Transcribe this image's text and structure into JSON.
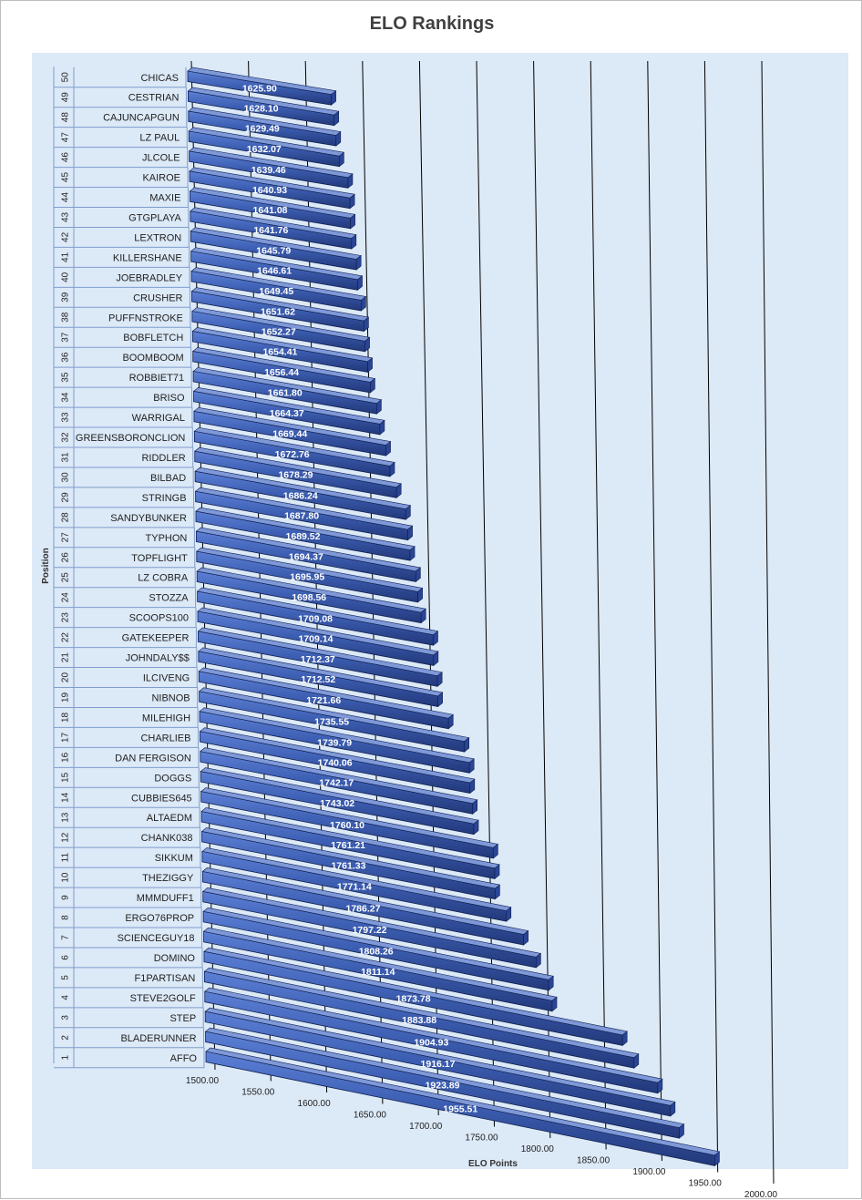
{
  "chart_data": {
    "type": "bar",
    "orientation": "horizontal",
    "style": "3d",
    "title": "ELO Rankings",
    "xlabel": "ELO Points",
    "ylabel": "Position",
    "xlim": [
      1500,
      2000
    ],
    "x_ticks": [
      "1500.00",
      "1550.00",
      "1600.00",
      "1650.00",
      "1700.00",
      "1750.00",
      "1800.00",
      "1850.00",
      "1900.00",
      "1950.00",
      "2000.00"
    ],
    "grid": "vertical",
    "bar_color": "#3d5fb3",
    "rows": [
      {
        "position": "50",
        "name": "CHICAS",
        "value": 1625.9,
        "label": "1625.90"
      },
      {
        "position": "49",
        "name": "CESTRIAN",
        "value": 1628.1,
        "label": "1628.10"
      },
      {
        "position": "48",
        "name": "CAJUNCAPGUN",
        "value": 1629.49,
        "label": "1629.49"
      },
      {
        "position": "47",
        "name": "LZ PAUL",
        "value": 1632.07,
        "label": "1632.07"
      },
      {
        "position": "46",
        "name": "JLCOLE",
        "value": 1639.46,
        "label": "1639.46"
      },
      {
        "position": "45",
        "name": "KAIROE",
        "value": 1640.93,
        "label": "1640.93"
      },
      {
        "position": "44",
        "name": "MAXIE",
        "value": 1641.08,
        "label": "1641.08"
      },
      {
        "position": "43",
        "name": "GTGPLAYA",
        "value": 1641.76,
        "label": "1641.76"
      },
      {
        "position": "42",
        "name": "LEXTRON",
        "value": 1645.79,
        "label": "1645.79"
      },
      {
        "position": "41",
        "name": "KILLERSHANE",
        "value": 1646.61,
        "label": "1646.61"
      },
      {
        "position": "40",
        "name": "JOEBRADLEY",
        "value": 1649.45,
        "label": "1649.45"
      },
      {
        "position": "39",
        "name": "CRUSHER",
        "value": 1651.62,
        "label": "1651.62"
      },
      {
        "position": "38",
        "name": "PUFFNSTROKE",
        "value": 1652.27,
        "label": "1652.27"
      },
      {
        "position": "37",
        "name": "BOBFLETCH",
        "value": 1654.41,
        "label": "1654.41"
      },
      {
        "position": "36",
        "name": "BOOMBOOM",
        "value": 1656.44,
        "label": "1656.44"
      },
      {
        "position": "35",
        "name": "ROBBIET71",
        "value": 1661.8,
        "label": "1661.80"
      },
      {
        "position": "34",
        "name": "BRISO",
        "value": 1664.37,
        "label": "1664.37"
      },
      {
        "position": "33",
        "name": "WARRIGAL",
        "value": 1669.44,
        "label": "1669.44"
      },
      {
        "position": "32",
        "name": "GREENSBORONCLION",
        "value": 1672.76,
        "label": "1672.76"
      },
      {
        "position": "31",
        "name": "RIDDLER",
        "value": 1678.29,
        "label": "1678.29"
      },
      {
        "position": "30",
        "name": "BILBAD",
        "value": 1686.24,
        "label": "1686.24"
      },
      {
        "position": "29",
        "name": "STRINGB",
        "value": 1687.8,
        "label": "1687.80"
      },
      {
        "position": "28",
        "name": "SANDYBUNKER",
        "value": 1689.52,
        "label": "1689.52"
      },
      {
        "position": "27",
        "name": "TYPHON",
        "value": 1694.37,
        "label": "1694.37"
      },
      {
        "position": "26",
        "name": "TOPFLIGHT",
        "value": 1695.95,
        "label": "1695.95"
      },
      {
        "position": "25",
        "name": "LZ COBRA",
        "value": 1698.56,
        "label": "1698.56"
      },
      {
        "position": "24",
        "name": "STOZZA",
        "value": 1709.08,
        "label": "1709.08"
      },
      {
        "position": "23",
        "name": "SCOOPS100",
        "value": 1709.14,
        "label": "1709.14"
      },
      {
        "position": "22",
        "name": "GATEKEEPER",
        "value": 1712.37,
        "label": "1712.37"
      },
      {
        "position": "21",
        "name": "JOHNDALY$$",
        "value": 1712.52,
        "label": "1712.52"
      },
      {
        "position": "20",
        "name": "ILCIVENG",
        "value": 1721.66,
        "label": "1721.66"
      },
      {
        "position": "19",
        "name": "NIBNOB",
        "value": 1735.55,
        "label": "1735.55"
      },
      {
        "position": "18",
        "name": "MILEHIGH",
        "value": 1739.79,
        "label": "1739.79"
      },
      {
        "position": "17",
        "name": "CHARLIEB",
        "value": 1740.06,
        "label": "1740.06"
      },
      {
        "position": "16",
        "name": "DAN FERGISON",
        "value": 1742.17,
        "label": "1742.17"
      },
      {
        "position": "15",
        "name": "DOGGS",
        "value": 1743.02,
        "label": "1743.02"
      },
      {
        "position": "14",
        "name": "CUBBIES645",
        "value": 1760.1,
        "label": "1760.10"
      },
      {
        "position": "13",
        "name": "ALTAEDM",
        "value": 1761.21,
        "label": "1761.21"
      },
      {
        "position": "12",
        "name": "CHANK038",
        "value": 1761.33,
        "label": "1761.33"
      },
      {
        "position": "11",
        "name": "SIKKUM",
        "value": 1771.14,
        "label": "1771.14"
      },
      {
        "position": "10",
        "name": "THEZIGGY",
        "value": 1786.27,
        "label": "1786.27"
      },
      {
        "position": "9",
        "name": "MMMDUFF1",
        "value": 1797.22,
        "label": "1797.22"
      },
      {
        "position": "8",
        "name": "ERGO76PROP",
        "value": 1808.26,
        "label": "1808.26"
      },
      {
        "position": "7",
        "name": "SCIENCEGUY18",
        "value": 1811.14,
        "label": "1811.14"
      },
      {
        "position": "6",
        "name": "DOMINO",
        "value": 1873.78,
        "label": "1873.78"
      },
      {
        "position": "5",
        "name": "F1PARTISAN",
        "value": 1883.88,
        "label": "1883.88"
      },
      {
        "position": "4",
        "name": "STEVE2GOLF",
        "value": 1904.93,
        "label": "1904.93"
      },
      {
        "position": "3",
        "name": "STEP",
        "value": 1916.17,
        "label": "1916.17"
      },
      {
        "position": "2",
        "name": "BLADERUNNER",
        "value": 1923.89,
        "label": "1923.89"
      },
      {
        "position": "1",
        "name": "AFFO",
        "value": 1955.51,
        "label": "1955.51"
      }
    ]
  }
}
